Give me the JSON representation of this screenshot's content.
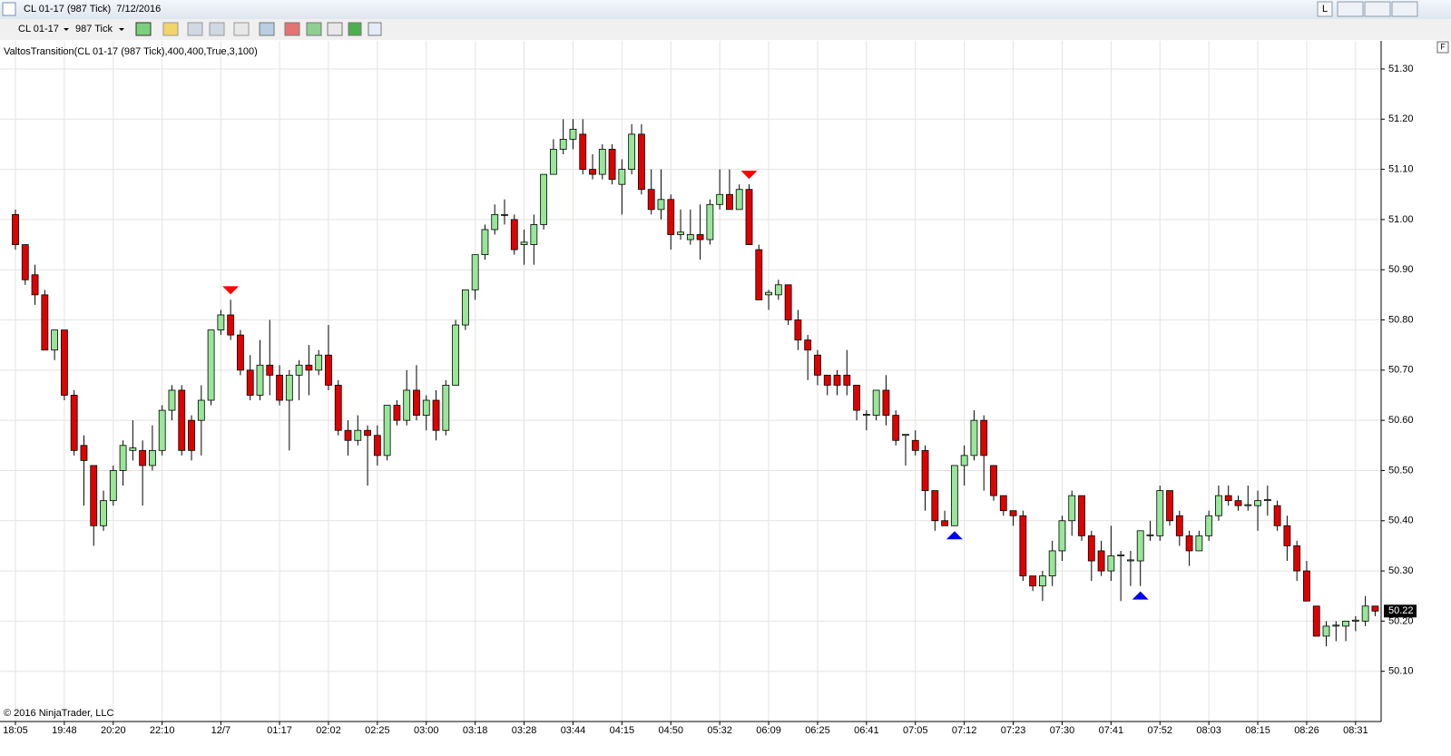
{
  "window": {
    "title": "CL 01-17 (987 Tick)  7/12/2016",
    "instrument": "CL 01-17",
    "period": "987 Tick",
    "button_l": "L",
    "button_f": "F"
  },
  "chart_data": {
    "type": "candlestick",
    "indicator_label": "ValtosTransition(CL 01-17 (987 Tick),400,400,True,3,100)",
    "copyright": "© 2016 NinjaTrader, LLC",
    "categories": [
      "18:05",
      null,
      null,
      null,
      null,
      "19:48",
      null,
      null,
      null,
      null,
      "20:20",
      null,
      null,
      null,
      null,
      "22:10",
      null,
      null,
      null,
      null,
      null,
      "12/7",
      null,
      null,
      null,
      null,
      null,
      "01:17",
      null,
      null,
      null,
      null,
      "02:02",
      null,
      null,
      null,
      null,
      "02:25",
      null,
      null,
      null,
      null,
      "03:00",
      null,
      null,
      null,
      null,
      "03:18",
      null,
      null,
      null,
      null,
      "03:28",
      null,
      null,
      null,
      null,
      "03:44",
      null,
      null,
      null,
      null,
      "04:15",
      null,
      null,
      null,
      null,
      "04:50",
      null,
      null,
      null,
      null,
      "05:32",
      null,
      null,
      null,
      null,
      "06:09",
      null,
      null,
      null,
      null,
      "06:25",
      null,
      null,
      null,
      null,
      "06:41",
      null,
      null,
      null,
      null,
      "07:05",
      null,
      null,
      null,
      null,
      "07:12",
      null,
      null,
      null,
      null,
      "07:23",
      null,
      null,
      null,
      null,
      "07:30",
      null,
      null,
      null,
      null,
      "07:41",
      null,
      null,
      null,
      null,
      "07:52",
      null,
      null,
      null,
      null,
      "08:03",
      null,
      null,
      null,
      null,
      "08:15",
      null,
      null,
      null,
      null,
      "08:26",
      null,
      null,
      null,
      null,
      "08:31",
      null,
      null
    ],
    "open": [
      51.01,
      50.95,
      50.89,
      50.85,
      50.74,
      50.78,
      50.65,
      50.55,
      50.51,
      50.39,
      50.44,
      50.5,
      50.54,
      50.54,
      50.51,
      50.54,
      50.62,
      50.66,
      50.6,
      50.6,
      50.64,
      50.78,
      50.81,
      50.77,
      50.7,
      50.65,
      50.71,
      50.69,
      50.64,
      50.69,
      50.71,
      50.7,
      50.73,
      50.67,
      50.58,
      50.56,
      50.58,
      50.57,
      50.53,
      50.63,
      50.6,
      50.66,
      50.61,
      50.64,
      50.58,
      50.67,
      50.79,
      50.86,
      50.93,
      50.98,
      51.01,
      51.0,
      50.95,
      50.95,
      50.99,
      51.09,
      51.14,
      51.16,
      51.17,
      51.1,
      51.09,
      51.14,
      51.07,
      51.1,
      51.17,
      51.06,
      51.02,
      51.04,
      50.97,
      50.96,
      50.97,
      50.96,
      51.03,
      51.05,
      51.02,
      51.06,
      50.94,
      50.85,
      50.85,
      50.87,
      50.8,
      50.76,
      50.73,
      50.69,
      50.69,
      50.69,
      50.67,
      50.61,
      50.61,
      50.66,
      50.61,
      50.57,
      50.56,
      50.54,
      50.46,
      50.4,
      50.39,
      50.51,
      50.53,
      50.6,
      50.51,
      50.45,
      50.42,
      50.41,
      50.29,
      50.27,
      50.29,
      50.34,
      50.4,
      50.45,
      50.37,
      50.34,
      50.3,
      50.33,
      50.32,
      50.32,
      50.37,
      50.37,
      50.46,
      50.41,
      50.37,
      50.34,
      50.37,
      50.41,
      50.45,
      50.44,
      50.43,
      50.43,
      50.44,
      50.43,
      50.39,
      50.35,
      50.3,
      50.23,
      50.17,
      50.19,
      50.19,
      50.2,
      50.2,
      50.23
    ],
    "close": [
      50.95,
      50.88,
      50.85,
      50.74,
      50.78,
      50.65,
      50.54,
      50.52,
      50.39,
      50.44,
      50.5,
      50.55,
      50.545,
      50.51,
      50.54,
      50.62,
      50.66,
      50.54,
      50.54,
      50.64,
      50.78,
      50.81,
      50.77,
      50.7,
      50.65,
      50.71,
      50.69,
      50.64,
      50.69,
      50.71,
      50.7,
      50.73,
      50.67,
      50.58,
      50.56,
      50.58,
      50.57,
      50.53,
      50.63,
      50.6,
      50.66,
      50.61,
      50.64,
      50.58,
      50.67,
      50.79,
      50.86,
      50.93,
      50.98,
      51.01,
      51.01,
      50.94,
      50.955,
      50.99,
      51.09,
      51.14,
      51.16,
      51.18,
      51.1,
      51.09,
      51.14,
      51.08,
      51.1,
      51.17,
      51.06,
      51.02,
      51.04,
      50.97,
      50.975,
      50.97,
      50.96,
      51.03,
      51.05,
      51.02,
      51.06,
      50.95,
      50.84,
      50.855,
      50.87,
      50.8,
      50.76,
      50.74,
      50.69,
      50.67,
      50.67,
      50.67,
      50.62,
      50.612,
      50.66,
      50.61,
      50.56,
      50.572,
      50.54,
      50.46,
      50.4,
      50.39,
      50.51,
      50.53,
      50.6,
      50.53,
      50.45,
      50.42,
      50.41,
      50.29,
      50.27,
      50.29,
      50.34,
      50.4,
      50.45,
      50.37,
      50.32,
      50.3,
      50.33,
      50.332,
      50.322,
      50.38,
      50.372,
      50.46,
      50.4,
      50.37,
      50.34,
      50.37,
      50.41,
      50.45,
      50.44,
      50.43,
      50.432,
      50.44,
      50.442,
      50.39,
      50.35,
      50.3,
      50.24,
      50.17,
      50.19,
      50.192,
      50.2,
      50.202,
      50.23,
      50.22
    ],
    "high": [
      51.02,
      50.95,
      50.91,
      50.86,
      50.78,
      50.78,
      50.66,
      50.57,
      50.51,
      50.46,
      50.51,
      50.56,
      50.6,
      50.56,
      50.59,
      50.63,
      50.67,
      50.67,
      50.61,
      50.67,
      50.78,
      50.82,
      50.84,
      50.78,
      50.73,
      50.76,
      50.8,
      50.71,
      50.7,
      50.72,
      50.75,
      50.74,
      50.79,
      50.68,
      50.6,
      50.61,
      50.59,
      50.59,
      50.63,
      50.64,
      50.7,
      50.71,
      50.65,
      50.66,
      50.68,
      50.8,
      50.86,
      50.93,
      50.99,
      51.03,
      51.04,
      51.01,
      50.98,
      51.01,
      51.09,
      51.16,
      51.2,
      51.2,
      51.2,
      51.13,
      51.15,
      51.15,
      51.12,
      51.19,
      51.19,
      51.1,
      51.1,
      51.05,
      51.02,
      51.02,
      51.03,
      51.04,
      51.1,
      51.1,
      51.07,
      51.07,
      50.95,
      50.86,
      50.88,
      50.87,
      50.82,
      50.77,
      50.74,
      50.69,
      50.7,
      50.74,
      50.67,
      50.62,
      50.66,
      50.69,
      50.62,
      50.57,
      50.58,
      50.55,
      50.46,
      50.42,
      50.51,
      50.55,
      50.62,
      50.61,
      50.51,
      50.45,
      50.42,
      50.42,
      50.29,
      50.3,
      50.36,
      50.41,
      50.46,
      50.45,
      50.38,
      50.36,
      50.39,
      50.34,
      50.34,
      50.38,
      50.4,
      50.47,
      50.46,
      50.42,
      50.38,
      50.38,
      50.42,
      50.47,
      50.47,
      50.45,
      50.47,
      50.46,
      50.47,
      50.44,
      50.41,
      50.36,
      50.32,
      50.23,
      50.2,
      50.2,
      50.2,
      50.21,
      50.25,
      50.23
    ],
    "low": [
      50.94,
      50.87,
      50.83,
      50.74,
      50.72,
      50.64,
      50.53,
      50.43,
      50.35,
      50.38,
      50.43,
      50.47,
      50.52,
      50.43,
      50.5,
      50.53,
      50.6,
      50.53,
      50.52,
      50.53,
      50.63,
      50.77,
      50.76,
      50.69,
      50.64,
      50.64,
      50.65,
      50.63,
      50.54,
      50.64,
      50.65,
      50.69,
      50.66,
      50.57,
      50.53,
      50.55,
      50.47,
      50.51,
      50.52,
      50.59,
      50.59,
      50.6,
      50.58,
      50.56,
      50.57,
      50.67,
      50.78,
      50.84,
      50.92,
      50.97,
      50.99,
      50.93,
      50.91,
      50.91,
      50.98,
      51.09,
      51.13,
      51.14,
      51.09,
      51.08,
      51.08,
      51.07,
      51.01,
      51.09,
      51.05,
      51.01,
      51.0,
      50.94,
      50.96,
      50.95,
      50.92,
      50.95,
      51.02,
      51.02,
      51.02,
      50.95,
      50.84,
      50.82,
      50.84,
      50.79,
      50.74,
      50.68,
      50.67,
      50.65,
      50.65,
      50.65,
      50.6,
      50.58,
      50.6,
      50.59,
      50.55,
      50.51,
      50.53,
      50.42,
      50.38,
      50.39,
      50.39,
      50.47,
      50.52,
      50.46,
      50.44,
      50.41,
      50.39,
      50.28,
      50.26,
      50.24,
      50.27,
      50.32,
      50.37,
      50.36,
      50.28,
      50.29,
      50.28,
      50.24,
      50.27,
      50.27,
      50.36,
      50.36,
      50.39,
      50.35,
      50.31,
      50.34,
      50.36,
      50.4,
      50.43,
      50.42,
      50.42,
      50.38,
      50.41,
      50.38,
      50.32,
      50.28,
      50.24,
      50.17,
      50.15,
      50.16,
      50.16,
      50.18,
      50.19,
      50.21
    ],
    "up_color": "#98e698",
    "down_color": "#e00000",
    "sell_signals": [
      22,
      75
    ],
    "sell_color": "#ff0000",
    "buy_signals": [
      96,
      115
    ],
    "buy_color": "#0000ee",
    "last_price": 50.22,
    "ylim": [
      50.0,
      51.356
    ],
    "yticks": [
      {
        "value": 50.1,
        "label": "50.10"
      },
      {
        "value": 50.2,
        "label": "50.20"
      },
      {
        "value": 50.3,
        "label": "50.30"
      },
      {
        "value": 50.4,
        "label": "50.40"
      },
      {
        "value": 50.5,
        "label": "50.50"
      },
      {
        "value": 50.6,
        "label": "50.60"
      },
      {
        "value": 50.7,
        "label": "50.70"
      },
      {
        "value": 50.8,
        "label": "50.80"
      },
      {
        "value": 50.9,
        "label": "50.90"
      },
      {
        "value": 51.0,
        "label": "51.00"
      },
      {
        "value": 51.1,
        "label": "51.10"
      },
      {
        "value": 51.2,
        "label": "51.20"
      },
      {
        "value": 51.3,
        "label": "51.30"
      }
    ],
    "grid": true
  }
}
